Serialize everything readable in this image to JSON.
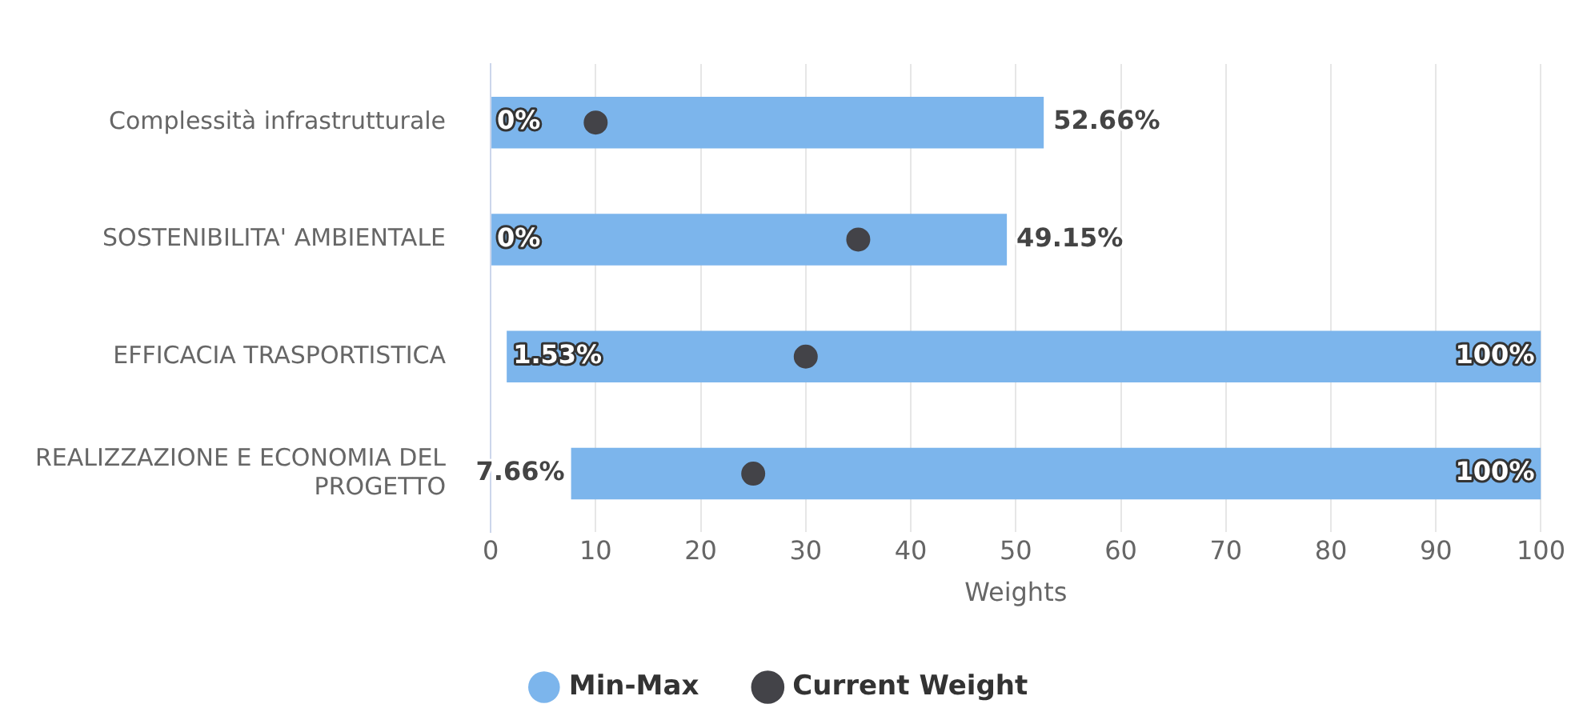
{
  "chart_data": {
    "type": "bar",
    "orientation": "horizontal",
    "xlabel": "Weights",
    "categories": [
      "Complessità infrastrutturale",
      "SOSTENIBILITA' AMBIENTALE",
      "EFFICACIA TRASPORTISTICA",
      "REALIZZAZIONE E ECONOMIA DEL PROGETTO"
    ],
    "series": [
      {
        "name": "Min-Max",
        "color": "#7cb5ec",
        "values": [
          52.66,
          49.15,
          98.47,
          92.34
        ],
        "base": [
          0,
          0,
          1.53,
          7.66
        ]
      },
      {
        "name": "Current Weight",
        "type": "scatter",
        "color": "#434348",
        "values": [
          10,
          35,
          30,
          25
        ]
      }
    ],
    "marker": "circle",
    "xlim": [
      0,
      100
    ],
    "xticks": [
      0,
      10,
      20,
      30,
      40,
      50,
      60,
      70,
      80,
      90,
      100
    ],
    "grid": "x",
    "legend": "bottom",
    "annotations": [
      {
        "text": "0%",
        "x": 0,
        "y": "Complessità infrastrutturale"
      },
      {
        "text": "52.66%",
        "x": 52.66,
        "y": "Complessità infrastrutturale"
      },
      {
        "text": "0%",
        "x": 0,
        "y": "SOSTENIBILITA' AMBIENTALE"
      },
      {
        "text": "49.15%",
        "x": 49.15,
        "y": "SOSTENIBILITA' AMBIENTALE"
      },
      {
        "text": "1.53%",
        "x": 1.53,
        "y": "EFFICACIA TRASPORTISTICA"
      },
      {
        "text": "100%",
        "x": 100,
        "y": "EFFICACIA TRASPORTISTICA"
      },
      {
        "text": "7.66%",
        "x": 7.66,
        "y": "REALIZZAZIONE E ECONOMIA DEL PROGETTO"
      },
      {
        "text": "100%",
        "x": 100,
        "y": "REALIZZAZIONE E ECONOMIA DEL PROGETTO"
      }
    ]
  }
}
